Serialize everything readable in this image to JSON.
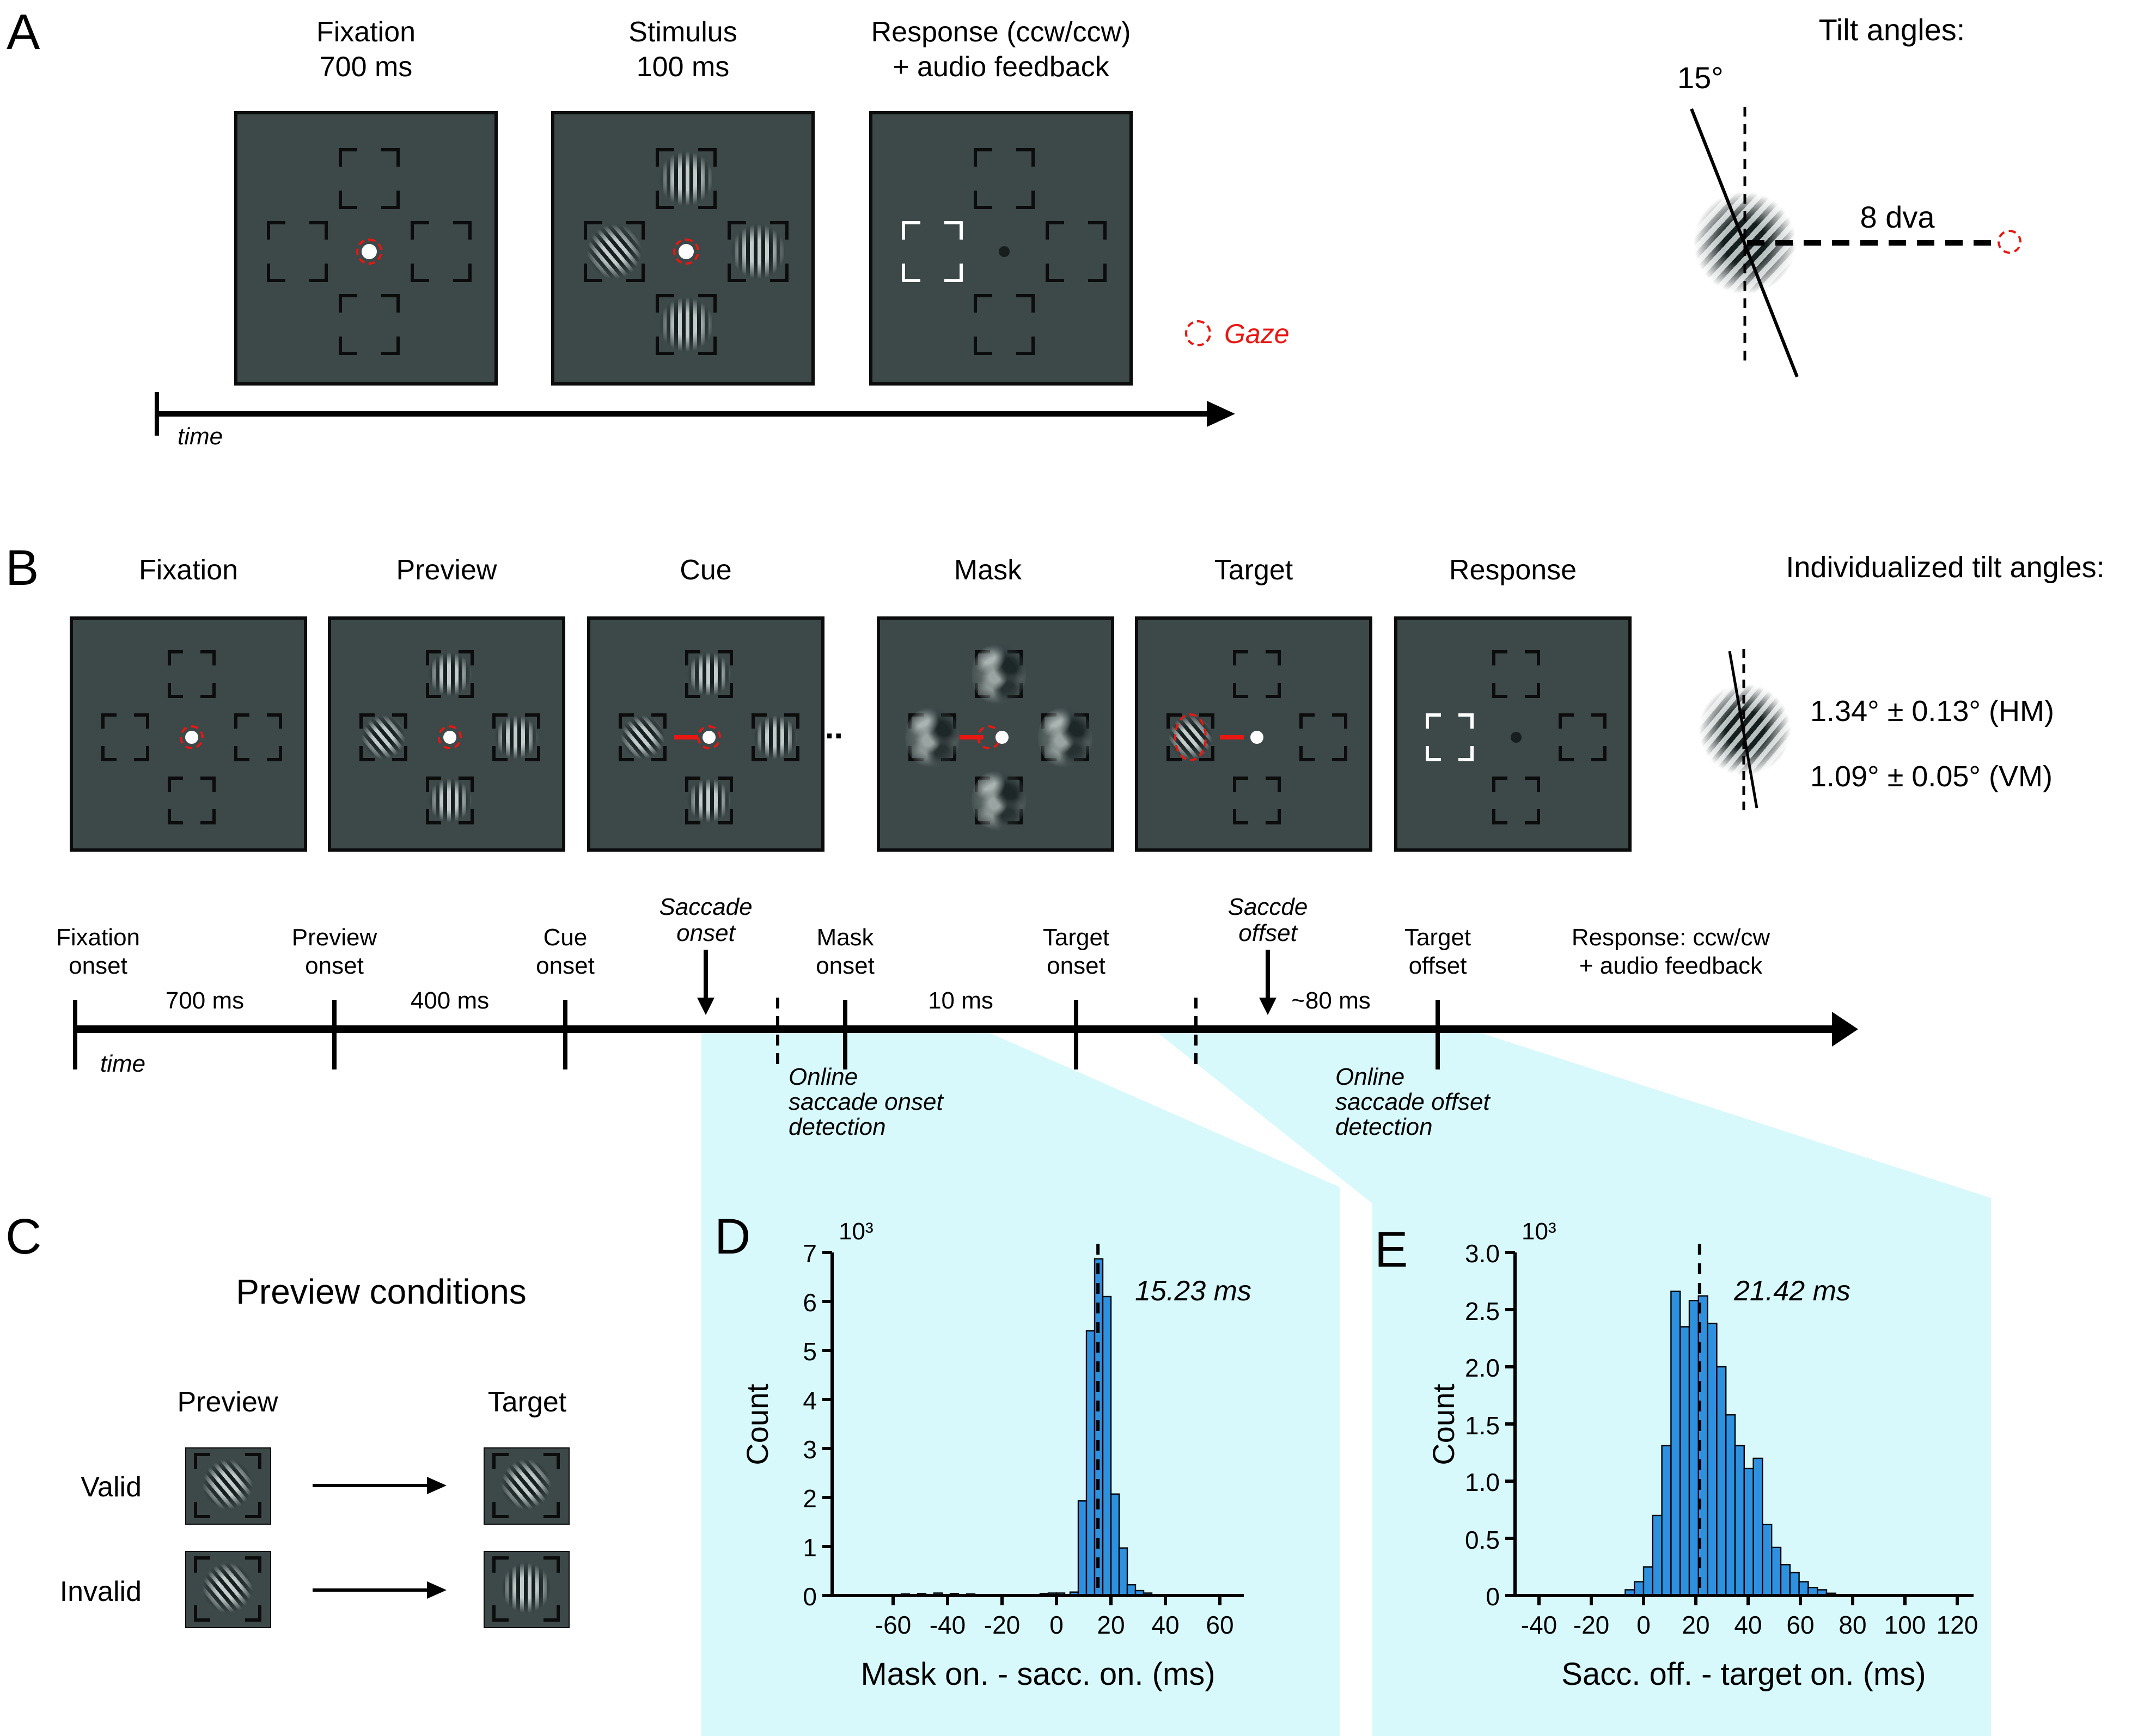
{
  "colors": {
    "screen_bg": "#3d4849",
    "cyan": "#d7f9fb",
    "bar_blue": "#2e91e0",
    "red": "#e81712",
    "black": "#000000"
  },
  "panelA": {
    "label": "A",
    "frames": [
      {
        "title1": "Fixation",
        "title2": "700 ms",
        "boxes": [
          "empty",
          "empty",
          "empty",
          "empty"
        ],
        "center": "fix-ring",
        "bracket_color": "black"
      },
      {
        "title1": "Stimulus",
        "title2": "100 ms",
        "boxes": [
          "gabor-v",
          "gabor-tilt",
          "gabor-v",
          "gabor-v"
        ],
        "center": "fix-ring",
        "bracket_color": "black"
      },
      {
        "title1": "Response (ccw/ccw)",
        "title2": "+ audio feedback",
        "boxes": [
          "empty",
          "empty-white",
          "empty",
          "empty"
        ],
        "center": "dot-dark",
        "bracket_color": "black"
      }
    ],
    "time_label": "time",
    "gaze_label": "Gaze",
    "tilt": {
      "title": "Tilt angles:",
      "angle_label": "15°",
      "distance_label": "8 dva"
    }
  },
  "panelB": {
    "label": "B",
    "ellipsis": "...",
    "frames": [
      {
        "title": "Fixation",
        "boxes": [
          "empty",
          "empty",
          "empty",
          "empty"
        ],
        "center": "fix-ring"
      },
      {
        "title": "Preview",
        "boxes": [
          "gabor-v",
          "gabor-tilt",
          "gabor-v",
          "gabor-v"
        ],
        "center": "fix-ring"
      },
      {
        "title": "Cue",
        "boxes": [
          "gabor-v",
          "gabor-tilt",
          "gabor-v",
          "gabor-v"
        ],
        "center": "fix-ring-cue"
      },
      {
        "title": "Mask",
        "boxes": [
          "noise",
          "noise",
          "noise",
          "noise"
        ],
        "center": "fix-shift-cue"
      },
      {
        "title": "Target",
        "boxes": [
          "empty",
          "gabor-tilt-gazed",
          "empty",
          "empty"
        ],
        "center": "fix-cue"
      },
      {
        "title": "Response",
        "boxes": [
          "empty",
          "empty-white",
          "empty",
          "empty"
        ],
        "center": "dot-dark"
      }
    ],
    "tilt": {
      "title": "Individualized tilt angles:",
      "hm": "1.34° ± 0.13° (HM)",
      "vm": "1.09° ± 0.05° (VM)"
    }
  },
  "timeline": {
    "time_label": "time",
    "events": [
      {
        "line1": "Fixation",
        "line2": "onset",
        "x": 69
      },
      {
        "line1": "Preview",
        "line2": "onset",
        "x": 307
      },
      {
        "line1": "Cue",
        "line2": "onset",
        "x": 519
      },
      {
        "line1": "Mask",
        "line2": "onset",
        "x": 776
      },
      {
        "line1": "Target",
        "line2": "onset",
        "x": 988
      },
      {
        "line1": "Target",
        "line2": "offset",
        "x": 1320
      }
    ],
    "durations": [
      {
        "text": "700 ms",
        "x": 188
      },
      {
        "text": "400 ms",
        "x": 413
      },
      {
        "text": "10 ms",
        "x": 882
      },
      {
        "text": "~80 ms",
        "x": 1222
      }
    ],
    "saccade_onset_line1": "Saccade",
    "saccade_onset_line2": "onset",
    "saccade_onset_x": 648,
    "saccade_offset_line1": "Saccde",
    "saccade_offset_line2": "offset",
    "saccade_offset_x": 1164,
    "detect_onset_x": 714,
    "detect_offset_x": 1098,
    "online_onset": [
      "Online",
      "saccade onset",
      "detection"
    ],
    "online_offset": [
      "Online",
      "saccade offset",
      "detection"
    ],
    "response_line1": "Response: ccw/cw",
    "response_line2": "+ audio feedback"
  },
  "panelC": {
    "label": "C",
    "title": "Preview conditions",
    "col1": "Preview",
    "col2": "Target",
    "row1": "Valid",
    "row2": "Invalid",
    "cells": [
      {
        "row": "Valid",
        "col": "Preview",
        "stim": "gabor-tilt"
      },
      {
        "row": "Valid",
        "col": "Target",
        "stim": "gabor-tilt"
      },
      {
        "row": "Invalid",
        "col": "Preview",
        "stim": "gabor-tilt"
      },
      {
        "row": "Invalid",
        "col": "Target",
        "stim": "gabor-v"
      }
    ]
  },
  "chart_data": [
    {
      "id": "D",
      "type": "bar",
      "panel_label": "D",
      "title": "",
      "xlabel": "Mask on. - sacc. on. (ms)",
      "ylabel": "Count",
      "y_unit": "10³",
      "xlim": [
        -84,
        70
      ],
      "ylim": [
        0,
        7
      ],
      "grid": false,
      "legend": false,
      "xticks": [
        -60,
        -40,
        -20,
        0,
        20,
        40,
        60
      ],
      "yticks": [
        "0",
        "1",
        "2",
        "3",
        "4",
        "5",
        "6",
        "7"
      ],
      "bin_width_ms": 3,
      "bars": [
        {
          "x": -57,
          "h": 0.03
        },
        {
          "x": -51,
          "h": 0.04
        },
        {
          "x": -45,
          "h": 0.05
        },
        {
          "x": -39,
          "h": 0.04
        },
        {
          "x": -33,
          "h": 0.03
        },
        {
          "x": -6,
          "h": 0.04
        },
        {
          "x": -3,
          "h": 0.05
        },
        {
          "x": 0,
          "h": 0.05
        },
        {
          "x": 5,
          "h": 0.07
        },
        {
          "x": 8,
          "h": 1.93
        },
        {
          "x": 11,
          "h": 5.4
        },
        {
          "x": 14,
          "h": 6.87
        },
        {
          "x": 17,
          "h": 6.1
        },
        {
          "x": 20,
          "h": 2.07
        },
        {
          "x": 23,
          "h": 0.97
        },
        {
          "x": 26,
          "h": 0.22
        },
        {
          "x": 29,
          "h": 0.1
        },
        {
          "x": 32,
          "h": 0.05
        }
      ],
      "mean_ms": 15.23,
      "annotation": "15.23 ms"
    },
    {
      "id": "E",
      "type": "bar",
      "panel_label": "E",
      "title": "",
      "xlabel": "Sacc. off. - target on. (ms)",
      "ylabel": "Count",
      "y_unit": "10³",
      "xlim": [
        -49,
        126
      ],
      "ylim": [
        0,
        3
      ],
      "grid": false,
      "legend": false,
      "xticks": [
        -40,
        -20,
        0,
        20,
        40,
        60,
        80,
        100,
        120
      ],
      "yticks": [
        "0",
        "0.5",
        "1.0",
        "1.5",
        "2.0",
        "2.5",
        "3.0"
      ],
      "bin_width_ms": 3.5,
      "bars": [
        {
          "x": -7,
          "h": 0.05
        },
        {
          "x": -3.5,
          "h": 0.12
        },
        {
          "x": 0,
          "h": 0.25
        },
        {
          "x": 3.5,
          "h": 0.7
        },
        {
          "x": 7,
          "h": 1.31
        },
        {
          "x": 10.5,
          "h": 2.66
        },
        {
          "x": 14,
          "h": 2.35
        },
        {
          "x": 17.5,
          "h": 2.58
        },
        {
          "x": 21,
          "h": 2.62
        },
        {
          "x": 24.5,
          "h": 2.38
        },
        {
          "x": 28,
          "h": 2.0
        },
        {
          "x": 31.5,
          "h": 1.58
        },
        {
          "x": 35,
          "h": 1.31
        },
        {
          "x": 38.5,
          "h": 1.11
        },
        {
          "x": 42,
          "h": 1.2
        },
        {
          "x": 45.5,
          "h": 0.62
        },
        {
          "x": 49,
          "h": 0.42
        },
        {
          "x": 52.5,
          "h": 0.27
        },
        {
          "x": 56,
          "h": 0.2
        },
        {
          "x": 59.5,
          "h": 0.12
        },
        {
          "x": 63,
          "h": 0.07
        },
        {
          "x": 66.5,
          "h": 0.05
        },
        {
          "x": 70,
          "h": 0.02
        }
      ],
      "mean_ms": 21.42,
      "annotation": "21.42 ms"
    }
  ]
}
